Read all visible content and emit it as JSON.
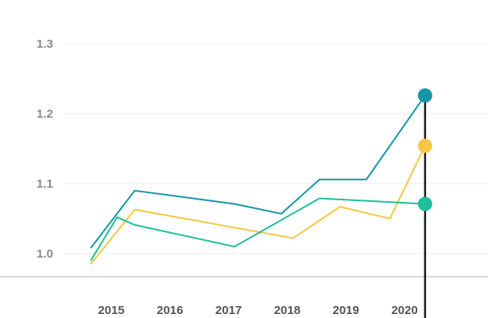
{
  "chart_data": {
    "type": "line",
    "x": [
      2014.65,
      2015.1,
      2015.4,
      2017.1,
      2017.9,
      2018.1,
      2018.55,
      2018.9,
      2019.35,
      2019.75,
      2020.35
    ],
    "series": [
      {
        "color": "#1496a8",
        "values": [
          1.008,
          null,
          1.09,
          1.071,
          1.057,
          null,
          1.106,
          null,
          1.106,
          null,
          1.226
        ]
      },
      {
        "color": "#f5c842",
        "values": [
          0.985,
          null,
          1.063,
          null,
          null,
          1.022,
          null,
          1.067,
          null,
          1.05,
          1.154
        ]
      },
      {
        "color": "#1dbf9a",
        "values": [
          0.99,
          1.052,
          1.041,
          1.01,
          null,
          null,
          1.079,
          null,
          null,
          null,
          1.071
        ]
      }
    ],
    "x_ticks": [
      "2015",
      "2016",
      "2017",
      "2018",
      "2019",
      "2020"
    ],
    "y_ticks": [
      "1.0",
      "1.1",
      "1.2",
      "1.3"
    ],
    "ylim": [
      0.97,
      1.32
    ],
    "xlim": [
      2014.2,
      2021.2
    ],
    "grid": true,
    "highlight_x": 2020.35
  }
}
